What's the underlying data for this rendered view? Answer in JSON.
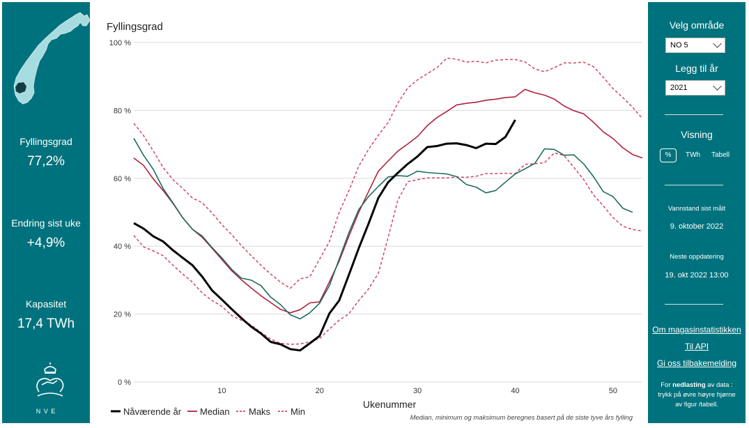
{
  "left_panel": {
    "stats": [
      {
        "label": "Fyllingsgrad",
        "value": "77,2%"
      },
      {
        "label": "Endring sist uke",
        "value": "+4,9%"
      },
      {
        "label": "Kapasitet",
        "value": "17,4 TWh"
      }
    ],
    "logo_text": "N V E"
  },
  "right_panel": {
    "area_label": "Velg område",
    "area_value": "NO 5",
    "year_label": "Legg til år",
    "year_value": "2021",
    "view_label": "Visning",
    "view_options": [
      "%",
      "TWh",
      "Tabell"
    ],
    "view_selected": "%",
    "measured_label": "Vannstand sist målt",
    "measured_value": "9. oktober 2022",
    "next_update_label": "Neste oppdatering",
    "next_update_value": "19. okt 2022 13:00",
    "links": [
      "Om magasinstatistikken",
      "Til API",
      "Gi oss tilbakemelding"
    ],
    "download_note_prefix": "For ",
    "download_note_bold": "nedlasting",
    "download_note_rest": " av data : trykk på øvre høyre hjørne av figur /tabell."
  },
  "colors": {
    "panel": "#00727d",
    "current_year": "#000000",
    "median": "#b0223b",
    "range": "#d0445f",
    "year_2021": "#1e6b5e",
    "grid": "#d9d9d9"
  },
  "chart_data": {
    "type": "line",
    "title": "Fyllingsgrad",
    "xlabel": "Ukenummer",
    "ylabel": "",
    "xlim": [
      1,
      53
    ],
    "ylim": [
      0,
      100
    ],
    "xticks": [
      10,
      20,
      30,
      40,
      50
    ],
    "yticks": [
      0,
      20,
      40,
      60,
      80,
      100
    ],
    "ytick_labels": [
      "0 %",
      "20 %",
      "40 %",
      "60 %",
      "80 %",
      "100 %"
    ],
    "grid": true,
    "legend_position": "bottom-left",
    "footnote": "Median, minimum og maksimum beregnes basert på de siste tyve års fylling",
    "series": [
      {
        "name": "Nåværende år",
        "style": "solid-thick",
        "color": "#000000",
        "x": [
          1,
          2,
          3,
          4,
          5,
          6,
          7,
          8,
          9,
          10,
          11,
          12,
          13,
          14,
          15,
          16,
          17,
          18,
          19,
          20,
          21,
          22,
          23,
          24,
          25,
          26,
          27,
          28,
          29,
          30,
          31,
          32,
          33,
          34,
          35,
          36,
          37,
          38,
          39,
          40
        ],
        "y": [
          46.8,
          45.2,
          42.9,
          41.4,
          38.8,
          36.6,
          34.4,
          31,
          27,
          24.3,
          21.5,
          18.8,
          16.3,
          14.3,
          11.8,
          11.1,
          9.7,
          9.3,
          11.4,
          13.6,
          20.2,
          24,
          31.6,
          39.4,
          46.6,
          54.2,
          58.8,
          61.6,
          64.2,
          66.4,
          69.2,
          69.5,
          70.2,
          70.3,
          69.8,
          68.9,
          70.2,
          70.1,
          72.2,
          77.2
        ]
      },
      {
        "name": "Median",
        "style": "solid",
        "color": "#b0223b",
        "x": [
          1,
          2,
          3,
          4,
          5,
          6,
          7,
          8,
          9,
          10,
          11,
          12,
          13,
          14,
          15,
          16,
          17,
          18,
          19,
          20,
          21,
          22,
          23,
          24,
          25,
          26,
          27,
          28,
          29,
          30,
          31,
          32,
          33,
          34,
          35,
          36,
          37,
          38,
          39,
          40,
          41,
          42,
          43,
          44,
          45,
          46,
          47,
          48,
          49,
          50,
          51,
          52,
          53
        ],
        "y": [
          66,
          63.8,
          59.8,
          56.4,
          52.6,
          48.4,
          45,
          42.6,
          39.4,
          36.1,
          32.8,
          30.1,
          27.7,
          25.4,
          23.4,
          21.4,
          20.4,
          21.3,
          23.3,
          23.6,
          29.5,
          35.6,
          43,
          50,
          56.1,
          62.1,
          65.1,
          68,
          70.1,
          72.3,
          75.5,
          77.9,
          79.7,
          81.6,
          82.1,
          82.4,
          83,
          83.3,
          83.8,
          84,
          86.2,
          85.2,
          84.5,
          83.3,
          81.3,
          79.9,
          79,
          76.5,
          73.7,
          71.7,
          69,
          67,
          66
        ]
      },
      {
        "name": "Maks",
        "style": "dashed",
        "color": "#d0445f",
        "x": [
          1,
          2,
          3,
          4,
          5,
          6,
          7,
          8,
          9,
          10,
          11,
          12,
          13,
          14,
          15,
          16,
          17,
          18,
          19,
          20,
          21,
          22,
          23,
          24,
          25,
          26,
          27,
          28,
          29,
          30,
          31,
          32,
          33,
          34,
          35,
          36,
          37,
          38,
          39,
          40,
          41,
          42,
          43,
          44,
          45,
          46,
          47,
          48,
          49,
          50,
          51,
          52,
          53
        ],
        "y": [
          76.2,
          72.6,
          68,
          63.2,
          59.6,
          57,
          54.2,
          52.8,
          49.8,
          46.4,
          43.4,
          40.2,
          37.2,
          34.4,
          31.8,
          29.4,
          27.6,
          30.4,
          31,
          36.2,
          41.4,
          50,
          56.4,
          63.6,
          68.5,
          72.7,
          76.4,
          82.2,
          86.6,
          89,
          90.8,
          92.6,
          95.4,
          95.1,
          94.2,
          94.5,
          94,
          94.8,
          95,
          95,
          94.3,
          92.2,
          91.4,
          92.6,
          94,
          94,
          94.2,
          92.9,
          89.8,
          86.4,
          83.8,
          80.9,
          77.6
        ]
      },
      {
        "name": "Min",
        "style": "dashed",
        "color": "#d0445f",
        "x": [
          1,
          2,
          3,
          4,
          5,
          6,
          7,
          8,
          9,
          10,
          11,
          12,
          13,
          14,
          15,
          16,
          17,
          18,
          19,
          20,
          21,
          22,
          23,
          24,
          25,
          26,
          27,
          28,
          29,
          30,
          31,
          32,
          33,
          34,
          35,
          36,
          37,
          38,
          39,
          40,
          41,
          42,
          43,
          44,
          45,
          46,
          47,
          48,
          49,
          50,
          51,
          52,
          53
        ],
        "y": [
          43.2,
          39.8,
          38.6,
          37.2,
          34.4,
          31.8,
          29.4,
          26.2,
          24,
          22.3,
          19.6,
          18.2,
          16.8,
          14.6,
          12.6,
          11.4,
          11.1,
          11.2,
          11.8,
          12.8,
          15.6,
          18.2,
          20.1,
          24,
          27.4,
          32,
          42.5,
          53.6,
          59,
          59.6,
          60.1,
          60.1,
          60.1,
          60.4,
          60.3,
          60.6,
          61.4,
          61.4,
          61.5,
          61.4,
          64.1,
          64.3,
          64.6,
          67.5,
          66.7,
          63.2,
          59.6,
          55.1,
          51.9,
          48.4,
          45.9,
          44.9,
          44.5
        ]
      },
      {
        "name": "2021",
        "style": "solid",
        "color": "#1e6b5e",
        "x": [
          1,
          2,
          3,
          4,
          5,
          6,
          7,
          8,
          9,
          10,
          11,
          12,
          13,
          14,
          15,
          16,
          17,
          18,
          19,
          20,
          21,
          22,
          23,
          24,
          25,
          26,
          27,
          28,
          29,
          30,
          31,
          32,
          33,
          34,
          35,
          36,
          37,
          38,
          39,
          40,
          41,
          42,
          43,
          44,
          45,
          46,
          47,
          48,
          49,
          50,
          51,
          52
        ],
        "y": [
          71.8,
          66.8,
          62.6,
          57,
          52.8,
          48.4,
          45,
          43,
          39.6,
          36.6,
          33.2,
          30.6,
          30,
          28.4,
          25,
          22.8,
          19.8,
          18.6,
          20.4,
          23.2,
          28.4,
          36.2,
          44,
          50.8,
          54.6,
          57.6,
          60.4,
          60.8,
          60.6,
          62.1,
          61.7,
          61.5,
          61.3,
          60.5,
          58.2,
          57.4,
          55.7,
          56.4,
          58.9,
          61.3,
          62.8,
          64.4,
          68.7,
          68.5,
          66.8,
          66.9,
          64.2,
          60.5,
          56.1,
          54.6,
          51.2,
          50
        ]
      }
    ]
  }
}
